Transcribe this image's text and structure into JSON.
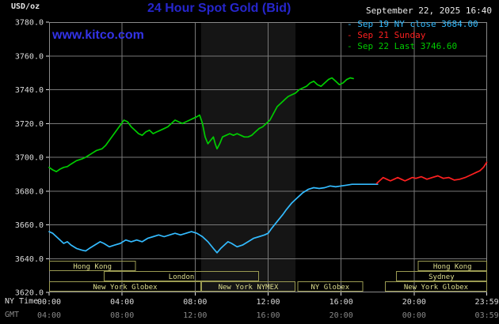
{
  "header": {
    "units_label": "USD/oz",
    "title": "24 Hour Spot Gold (Bid)",
    "datetime": "September 22, 2025 16:40",
    "watermark": "www.kitco.com"
  },
  "legend": {
    "items": [
      {
        "marker": "-",
        "label": "Sep 19 NY close 3684.00",
        "color": "#33bbff"
      },
      {
        "marker": "-",
        "label": "Sep 21 Sunday",
        "color": "#ff2020"
      },
      {
        "marker": "-",
        "label": "Sep 22 Last 3746.60",
        "color": "#00cc00"
      }
    ]
  },
  "axes": {
    "ny_label": "NY Time",
    "gmt_label": "GMT",
    "y_ticks": [
      {
        "v": 3780,
        "label": "3780.0"
      },
      {
        "v": 3760,
        "label": "3760.0"
      },
      {
        "v": 3740,
        "label": "3740.0"
      },
      {
        "v": 3720,
        "label": "3720.0"
      },
      {
        "v": 3700,
        "label": "3700.0"
      },
      {
        "v": 3680,
        "label": "3680.0"
      },
      {
        "v": 3660,
        "label": "3660.0"
      },
      {
        "v": 3640,
        "label": "3640.0"
      },
      {
        "v": 3620,
        "label": "3620.0"
      }
    ],
    "x_ticks": [
      {
        "h": 0,
        "ny": "00:00",
        "gmt": "04:00"
      },
      {
        "h": 4,
        "ny": "04:00",
        "gmt": "08:00"
      },
      {
        "h": 8,
        "ny": "08:00",
        "gmt": "12:00"
      },
      {
        "h": 12,
        "ny": "12:00",
        "gmt": "16:00"
      },
      {
        "h": 16,
        "ny": "16:00",
        "gmt": "20:00"
      },
      {
        "h": 20,
        "ny": "20:00",
        "gmt": "00:00"
      },
      {
        "h": 23.983,
        "ny": "23:59",
        "gmt": "03:59"
      }
    ]
  },
  "sessions": [
    {
      "label": "Hong Kong",
      "row": 0,
      "start": 0,
      "end": 4.75
    },
    {
      "label": "Hong Kong",
      "row": 0,
      "start": 20.2,
      "end": 24
    },
    {
      "label": "London",
      "row": 1,
      "start": 3.0,
      "end": 11.5
    },
    {
      "label": "Sydney",
      "row": 1,
      "start": 19.0,
      "end": 24
    },
    {
      "label": "New York Globex",
      "row": 2,
      "start": 0,
      "end": 8.33
    },
    {
      "label": "New York NYMEX",
      "row": 2,
      "start": 8.33,
      "end": 13.5
    },
    {
      "label": "NY Globex",
      "row": 2,
      "start": 13.6,
      "end": 17.2
    },
    {
      "label": "New York Globex",
      "row": 2,
      "start": 18.4,
      "end": 24
    }
  ],
  "chart_data": {
    "type": "line",
    "title": "24 Hour Spot Gold (Bid)",
    "xlabel": "NY Time (hours 00:00-23:59)",
    "ylabel": "USD/oz",
    "ylim": [
      3620,
      3780
    ],
    "xlim_hours": [
      0,
      24
    ],
    "grid": true,
    "grid_color": "#787878",
    "background": "#000000",
    "highlight_band_hours": [
      8.33,
      13.5
    ],
    "highlight_band_color": "#151515",
    "legend_position": "top-right",
    "series": [
      {
        "name": "Sep 19 NY close 3684.00",
        "color": "#33bbff",
        "points": [
          [
            0,
            3656
          ],
          [
            0.2,
            3655
          ],
          [
            0.4,
            3653
          ],
          [
            0.6,
            3651
          ],
          [
            0.8,
            3649
          ],
          [
            1,
            3650
          ],
          [
            1.2,
            3648
          ],
          [
            1.5,
            3646
          ],
          [
            1.8,
            3645
          ],
          [
            2,
            3644.5
          ],
          [
            2.2,
            3646
          ],
          [
            2.5,
            3648
          ],
          [
            2.8,
            3650
          ],
          [
            3,
            3649
          ],
          [
            3.3,
            3647
          ],
          [
            3.6,
            3648
          ],
          [
            3.9,
            3649
          ],
          [
            4.2,
            3651
          ],
          [
            4.5,
            3650
          ],
          [
            4.8,
            3651
          ],
          [
            5.1,
            3650
          ],
          [
            5.4,
            3652
          ],
          [
            5.7,
            3653
          ],
          [
            6,
            3654
          ],
          [
            6.3,
            3653
          ],
          [
            6.6,
            3654
          ],
          [
            6.9,
            3655
          ],
          [
            7.2,
            3654
          ],
          [
            7.5,
            3655
          ],
          [
            7.8,
            3656
          ],
          [
            8.1,
            3655
          ],
          [
            8.4,
            3653
          ],
          [
            8.7,
            3650
          ],
          [
            9,
            3646
          ],
          [
            9.2,
            3643.5
          ],
          [
            9.4,
            3646
          ],
          [
            9.6,
            3648
          ],
          [
            9.8,
            3650
          ],
          [
            10,
            3649
          ],
          [
            10.3,
            3647
          ],
          [
            10.6,
            3648
          ],
          [
            10.9,
            3650
          ],
          [
            11.2,
            3652
          ],
          [
            11.5,
            3653
          ],
          [
            11.8,
            3654
          ],
          [
            12,
            3655
          ],
          [
            12.2,
            3658
          ],
          [
            12.5,
            3662
          ],
          [
            12.8,
            3666
          ],
          [
            13,
            3669
          ],
          [
            13.3,
            3673
          ],
          [
            13.6,
            3676
          ],
          [
            13.9,
            3679
          ],
          [
            14.2,
            3681
          ],
          [
            14.5,
            3682
          ],
          [
            14.8,
            3681.5
          ],
          [
            15.1,
            3682
          ],
          [
            15.4,
            3683
          ],
          [
            15.7,
            3682.5
          ],
          [
            16,
            3683
          ],
          [
            16.3,
            3683.5
          ],
          [
            16.6,
            3684
          ],
          [
            17,
            3684
          ],
          [
            18,
            3684
          ]
        ]
      },
      {
        "name": "Sep 21 Sunday",
        "color": "#ff2020",
        "points": [
          [
            17.95,
            3684.5
          ],
          [
            18.1,
            3686
          ],
          [
            18.3,
            3688
          ],
          [
            18.5,
            3687
          ],
          [
            18.7,
            3686
          ],
          [
            18.9,
            3687
          ],
          [
            19.1,
            3688
          ],
          [
            19.3,
            3687
          ],
          [
            19.5,
            3686
          ],
          [
            19.7,
            3687
          ],
          [
            19.9,
            3688
          ],
          [
            20.1,
            3687.5
          ],
          [
            20.4,
            3688.5
          ],
          [
            20.7,
            3687
          ],
          [
            21,
            3688
          ],
          [
            21.3,
            3689
          ],
          [
            21.6,
            3687.5
          ],
          [
            21.9,
            3688
          ],
          [
            22.2,
            3686.5
          ],
          [
            22.5,
            3687
          ],
          [
            22.8,
            3688
          ],
          [
            23,
            3689
          ],
          [
            23.2,
            3690
          ],
          [
            23.4,
            3691
          ],
          [
            23.6,
            3692
          ],
          [
            23.8,
            3694
          ],
          [
            23.98,
            3697
          ]
        ]
      },
      {
        "name": "Sep 22 Last 3746.60",
        "color": "#00cc00",
        "points": [
          [
            0,
            3694
          ],
          [
            0.2,
            3692.5
          ],
          [
            0.4,
            3691.5
          ],
          [
            0.6,
            3693
          ],
          [
            0.8,
            3694
          ],
          [
            1,
            3694.5
          ],
          [
            1.2,
            3696
          ],
          [
            1.5,
            3698
          ],
          [
            1.8,
            3699
          ],
          [
            2,
            3700
          ],
          [
            2.3,
            3702
          ],
          [
            2.6,
            3704
          ],
          [
            2.9,
            3705
          ],
          [
            3.1,
            3707
          ],
          [
            3.3,
            3710
          ],
          [
            3.5,
            3713
          ],
          [
            3.7,
            3716
          ],
          [
            3.9,
            3719
          ],
          [
            4.1,
            3722
          ],
          [
            4.3,
            3721
          ],
          [
            4.5,
            3718
          ],
          [
            4.7,
            3716
          ],
          [
            4.9,
            3714
          ],
          [
            5.1,
            3713
          ],
          [
            5.3,
            3715
          ],
          [
            5.5,
            3716
          ],
          [
            5.7,
            3714
          ],
          [
            5.9,
            3715
          ],
          [
            6.1,
            3716
          ],
          [
            6.3,
            3717
          ],
          [
            6.5,
            3718
          ],
          [
            6.7,
            3720
          ],
          [
            6.9,
            3722
          ],
          [
            7.1,
            3721
          ],
          [
            7.3,
            3720
          ],
          [
            7.5,
            3721
          ],
          [
            7.7,
            3722
          ],
          [
            7.9,
            3723
          ],
          [
            8.1,
            3724
          ],
          [
            8.25,
            3725
          ],
          [
            8.4,
            3720
          ],
          [
            8.55,
            3712
          ],
          [
            8.7,
            3708
          ],
          [
            8.85,
            3710
          ],
          [
            9,
            3712
          ],
          [
            9.1,
            3708
          ],
          [
            9.2,
            3705
          ],
          [
            9.35,
            3708
          ],
          [
            9.5,
            3712
          ],
          [
            9.7,
            3713
          ],
          [
            9.9,
            3714
          ],
          [
            10.1,
            3713
          ],
          [
            10.3,
            3714
          ],
          [
            10.5,
            3713
          ],
          [
            10.7,
            3712
          ],
          [
            10.9,
            3712
          ],
          [
            11.1,
            3713
          ],
          [
            11.3,
            3715
          ],
          [
            11.5,
            3717
          ],
          [
            11.7,
            3718
          ],
          [
            11.9,
            3720
          ],
          [
            12.1,
            3722
          ],
          [
            12.3,
            3726
          ],
          [
            12.5,
            3730
          ],
          [
            12.7,
            3732
          ],
          [
            12.9,
            3734
          ],
          [
            13.1,
            3736
          ],
          [
            13.3,
            3737
          ],
          [
            13.5,
            3738
          ],
          [
            13.7,
            3740
          ],
          [
            13.9,
            3741
          ],
          [
            14.1,
            3742
          ],
          [
            14.3,
            3744
          ],
          [
            14.5,
            3745
          ],
          [
            14.7,
            3743
          ],
          [
            14.9,
            3742
          ],
          [
            15.1,
            3744
          ],
          [
            15.3,
            3746
          ],
          [
            15.5,
            3747
          ],
          [
            15.7,
            3745
          ],
          [
            15.9,
            3743
          ],
          [
            16.1,
            3744
          ],
          [
            16.3,
            3746
          ],
          [
            16.5,
            3747
          ],
          [
            16.67,
            3746.6
          ]
        ]
      }
    ]
  },
  "colors": {
    "title_blue": "#2626cc",
    "watermark_blue": "#3333e8",
    "grid": "#787878",
    "border": "#8a8a8a",
    "axis_text": "#dcdcdc",
    "gmt_text": "#8a8a8a",
    "session_border": "#9a9a52",
    "session_text": "#dfdf8f"
  }
}
